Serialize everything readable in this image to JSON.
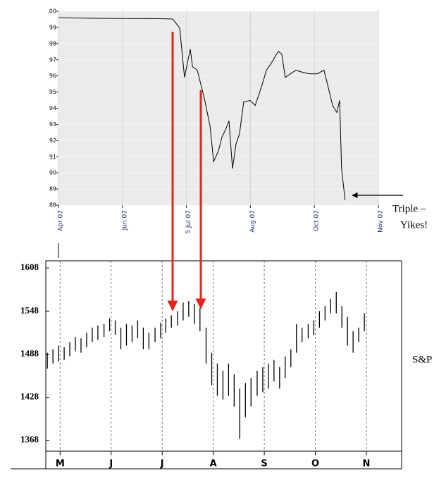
{
  "chart_data": [
    {
      "type": "line",
      "color": "#000000",
      "x": [
        0,
        10,
        20,
        30,
        35.7,
        37.9,
        39.4,
        40.3,
        41.2,
        41.9,
        43.4,
        44.5,
        45.6,
        47.4,
        48.5,
        50,
        51.1,
        52.2,
        53.3,
        54.4,
        55.5,
        56.6,
        57.9,
        59.9,
        61.5,
        63.7,
        65,
        66.5,
        68.7,
        69.8,
        70.9,
        72.5,
        74.2,
        76.4,
        78.6,
        80.8,
        83,
        84.1,
        85.7,
        87,
        87.9,
        88.5,
        89.6
      ],
      "values": [
        99.61,
        99.57,
        99.55,
        99.55,
        99.52,
        98.96,
        95.91,
        96.78,
        97.65,
        96.57,
        96.35,
        95.48,
        94.61,
        92.87,
        90.7,
        91.35,
        92.22,
        92.65,
        93.22,
        90.26,
        91.78,
        92.43,
        94.39,
        94.48,
        94.17,
        95.48,
        96.35,
        96.78,
        97.52,
        97.35,
        95.91,
        96.13,
        96.35,
        96.22,
        96.13,
        96.13,
        96.35,
        95.48,
        94.17,
        93.74,
        94.48,
        90.26,
        88.3
      ],
      "xlim": [
        0,
        100
      ],
      "xticks": [
        {
          "value": 0,
          "label": "Apr 07"
        },
        {
          "value": 20,
          "label": "Jun 07"
        },
        {
          "value": 40,
          "label": "5 Jul 07"
        },
        {
          "value": 60,
          "label": "Aug 07"
        },
        {
          "value": 80,
          "label": "Oct 07"
        },
        {
          "value": 100,
          "label": "Nov 07"
        }
      ],
      "ylim": [
        88,
        100
      ],
      "yticks": [
        {
          "value": 100,
          "label": ".00"
        },
        99,
        98,
        97,
        96,
        95,
        94,
        93,
        92,
        91,
        90,
        89,
        88
      ],
      "grid": true,
      "annotation_lines": [
        "Triple  –",
        "Yikes!"
      ]
    },
    {
      "type": "range-bar",
      "color": "#000000",
      "label": "S&P",
      "x": [
        -0.25,
        -0.14,
        -0.03,
        0.08,
        0.19,
        0.3,
        0.41,
        0.52,
        0.63,
        0.74,
        0.86,
        0.97,
        1.08,
        1.19,
        1.3,
        1.41,
        1.52,
        1.63,
        1.74,
        1.86,
        1.97,
        2.07,
        2.18,
        2.3,
        2.41,
        2.52,
        2.63,
        2.74,
        2.86,
        2.97,
        3.08,
        3.19,
        3.3,
        3.41,
        3.52,
        3.63,
        3.74,
        3.86,
        3.97,
        4.08,
        4.19,
        4.3,
        4.41,
        4.52,
        4.63,
        4.74,
        4.86,
        4.97,
        5.08,
        5.19,
        5.3,
        5.41,
        5.52,
        5.63,
        5.74,
        5.85,
        5.96
      ],
      "high": [
        1490,
        1495,
        1500,
        1498,
        1505,
        1512,
        1510,
        1518,
        1525,
        1528,
        1530,
        1538,
        1535,
        1525,
        1530,
        1528,
        1535,
        1525,
        1518,
        1525,
        1532,
        1538,
        1542,
        1548,
        1560,
        1562,
        1558,
        1552,
        1525,
        1490,
        1475,
        1465,
        1475,
        1460,
        1440,
        1448,
        1455,
        1465,
        1470,
        1475,
        1480,
        1470,
        1485,
        1495,
        1530,
        1525,
        1530,
        1535,
        1548,
        1555,
        1565,
        1575,
        1555,
        1540,
        1520,
        1525,
        1545
      ],
      "low": [
        1468,
        1475,
        1478,
        1480,
        1485,
        1492,
        1490,
        1498,
        1505,
        1508,
        1512,
        1520,
        1515,
        1495,
        1500,
        1505,
        1510,
        1495,
        1495,
        1505,
        1510,
        1518,
        1525,
        1528,
        1535,
        1540,
        1530,
        1520,
        1475,
        1445,
        1430,
        1425,
        1430,
        1415,
        1370,
        1400,
        1415,
        1430,
        1435,
        1440,
        1450,
        1440,
        1455,
        1470,
        1490,
        1505,
        1510,
        1515,
        1525,
        1535,
        1545,
        1545,
        1525,
        1500,
        1490,
        1505,
        1520
      ],
      "xlim": [
        -0.28,
        6.69
      ],
      "xticks": [
        {
          "value": 0,
          "label": "M"
        },
        {
          "value": 1,
          "label": "J"
        },
        {
          "value": 2,
          "label": "J"
        },
        {
          "value": 3,
          "label": "A"
        },
        {
          "value": 4,
          "label": "S"
        },
        {
          "value": 5,
          "label": "O"
        },
        {
          "value": 6,
          "label": "N"
        }
      ],
      "ylim": [
        1353,
        1618
      ],
      "yticks": [
        1368,
        1428,
        1488,
        1548,
        1608
      ],
      "grid": true
    }
  ]
}
